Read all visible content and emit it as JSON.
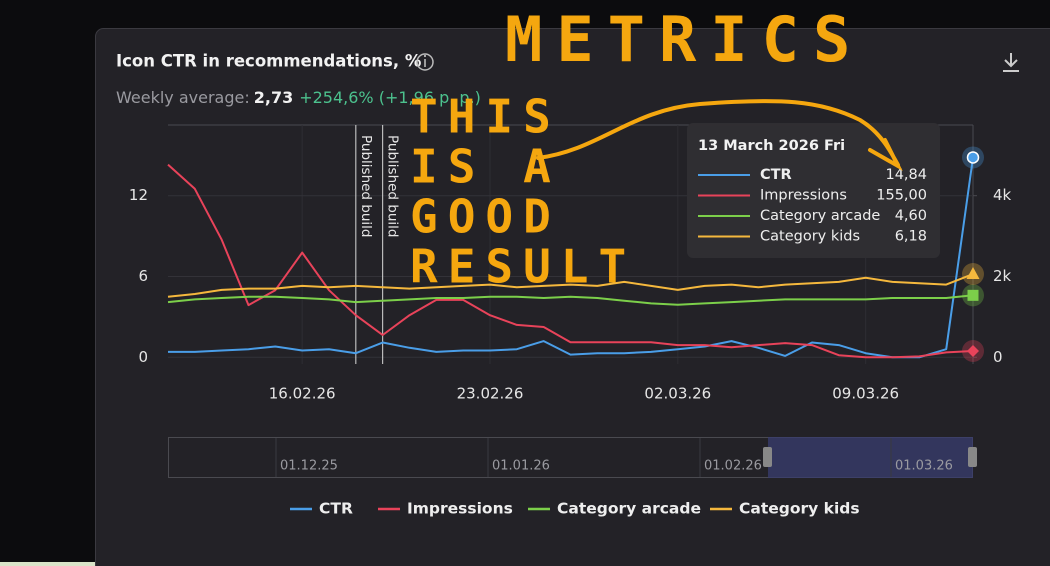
{
  "header": {
    "weekly_label": "Weekly average:",
    "weekly_value": "2,73",
    "weekly_change": "+254,6% (+1,96 p. p.)"
  },
  "chart_data": {
    "type": "line",
    "title": "Icon CTR in recommendations, %",
    "categories": [
      null,
      null,
      null,
      null,
      null,
      "16.02.26",
      null,
      null,
      null,
      null,
      null,
      null,
      "23.02.26",
      null,
      null,
      null,
      null,
      null,
      null,
      "02.03.26",
      null,
      null,
      null,
      null,
      null,
      null,
      "09.03.26",
      null,
      null,
      null,
      null
    ],
    "series": [
      {
        "name": "CTR",
        "color": "#4a9ee8",
        "values": [
          0.4,
          0.4,
          0.5,
          0.6,
          0.8,
          0.5,
          0.6,
          0.3,
          1.1,
          0.7,
          0.4,
          0.5,
          0.5,
          0.6,
          1.2,
          0.2,
          0.3,
          0.3,
          0.4,
          0.6,
          0.8,
          1.2,
          0.7,
          0.1,
          1.1,
          0.9,
          0.3,
          0,
          0,
          0.6,
          14.84
        ]
      },
      {
        "name": "Impressions",
        "color": "#e8435a",
        "axis": "y2",
        "values": [
          4770,
          4170,
          2910,
          1290,
          1660,
          2590,
          1660,
          1040,
          550,
          1040,
          1420,
          1420,
          1040,
          800,
          750,
          370,
          370,
          370,
          370,
          300,
          300,
          250,
          300,
          350,
          300,
          50,
          0,
          0,
          20,
          120,
          155
        ]
      },
      {
        "name": "Category arcade",
        "color": "#7ccf4a",
        "values": [
          4.1,
          4.3,
          4.4,
          4.5,
          4.5,
          4.4,
          4.3,
          4.1,
          4.2,
          4.3,
          4.4,
          4.4,
          4.5,
          4.5,
          4.4,
          4.5,
          4.4,
          4.2,
          4.0,
          3.9,
          4.0,
          4.1,
          4.2,
          4.3,
          4.3,
          4.3,
          4.3,
          4.4,
          4.4,
          4.4,
          4.6
        ]
      },
      {
        "name": "Category kids",
        "color": "#f5b83d",
        "values": [
          4.5,
          4.7,
          5.0,
          5.1,
          5.1,
          5.3,
          5.2,
          5.3,
          5.2,
          5.1,
          5.2,
          5.3,
          5.4,
          5.2,
          5.3,
          5.4,
          5.3,
          5.6,
          5.3,
          5.0,
          5.3,
          5.4,
          5.2,
          5.4,
          5.5,
          5.6,
          5.9,
          5.6,
          5.5,
          5.4,
          6.18
        ]
      }
    ],
    "ylim": [
      -0.5,
      17.25
    ],
    "yticks": [
      0,
      6,
      12
    ],
    "y2lim": [
      -167,
      5750
    ],
    "y2ticks": [
      0,
      {
        "value": 2000,
        "label": "2k"
      },
      {
        "value": 4000,
        "label": "4k"
      }
    ],
    "events": [
      {
        "at": 7,
        "label": "Published build"
      },
      {
        "at": 8,
        "label": "Published build"
      }
    ],
    "legend": "bottom"
  },
  "tooltip": {
    "date": "13 March 2026 Fri",
    "values": [
      "14,84",
      "155,00",
      "4,60",
      "6,18"
    ]
  },
  "navigator": {
    "labels": [
      "01.12.25",
      "01.01.26",
      "01.02.26",
      "01.03.26"
    ]
  },
  "annotations": {
    "title": "METRICS",
    "lines": [
      "THIS",
      "IS A",
      "GOOD",
      "RESULT"
    ]
  }
}
